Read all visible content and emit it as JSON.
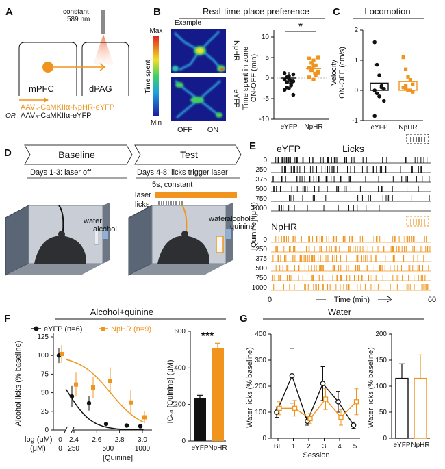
{
  "panels": {
    "A": {
      "label": "A",
      "laser_text_1": "constant",
      "laser_text_2": "589 nm",
      "box_left": "mPFC",
      "box_right": "dPAG",
      "virus_1": "AAV₅-CaMKIIα-NpHR-eYFP",
      "virus_or": "OR",
      "virus_2": "AAV₅-CaMKIIα-eYFP"
    },
    "B": {
      "label": "B",
      "title": "Real-time place preference",
      "example": "Example",
      "cb_max": "Max",
      "cb_min": "Min",
      "cb_label": "Time spent",
      "row1": "NpHR",
      "row2": "eYFP",
      "x_off": "OFF",
      "x_on": "ON",
      "ylabel_1": "Time spent in zone",
      "ylabel_2": "ON-OFF (min)",
      "sig": "*",
      "yticks": [
        "10",
        "5",
        "0",
        "-5",
        "-10"
      ],
      "xcats": [
        "eYFP",
        "NpHR"
      ]
    },
    "C": {
      "label": "C",
      "title": "Locomotion",
      "ylabel_1": "Velocity",
      "ylabel_2": "ON-OFF (cm/s)",
      "yticks": [
        "2",
        "1",
        "0",
        "-1"
      ],
      "xcats": [
        "eYFP",
        "NpHR"
      ]
    },
    "D": {
      "label": "D",
      "stage1": "Baseline",
      "stage2": "Test",
      "days1": "Days 1-3: laser off",
      "days2": "Days 4-8: licks trigger laser",
      "laser_label": "laser",
      "licks_label": "licks",
      "pulse": "5s, constant",
      "water1": "water",
      "alcohol1": "alcohol",
      "water2": "water",
      "alcohol2": "alcohol+",
      "quinine2": "quinine"
    },
    "E": {
      "label": "E",
      "group1": "eYFP",
      "licks_title": "Licks",
      "group2": "NpHR",
      "rows": [
        "0",
        "250",
        "375",
        "500",
        "750",
        "1000"
      ],
      "ylabel": "[Quinine] (μM)",
      "x0": "0",
      "x1": "60",
      "xlabel": "Time (min)"
    },
    "F": {
      "label": "F",
      "title_1": "Alcohol+",
      "title_2": "quinine",
      "legend_1": "eYFP (n=6)",
      "legend_2": "NpHR (n=9)",
      "ylabel": "Alcohol licks (% baseline)",
      "yticks": [
        "125",
        "100",
        "75",
        "50",
        "25",
        "0"
      ],
      "log_label": "log (μM)",
      "um_label": "(μM)",
      "log_ticks": [
        "0",
        "2.4",
        "2.6",
        "2.8",
        "3.0"
      ],
      "um_ticks": [
        "0",
        "250",
        "500",
        "1000"
      ],
      "xlabel": "[Quinine]",
      "ic_ylabel": "IC₅₀ [Quinine] (μM)",
      "ic_yticks": [
        "600",
        "400",
        "200",
        "0"
      ],
      "ic_sig": "***",
      "ic_xcats": [
        "eYFP",
        "NpHR"
      ]
    },
    "G": {
      "label": "G",
      "title": "Water",
      "ylabel": "Water licks (% baseline)",
      "yticks": [
        "400",
        "300",
        "200",
        "100",
        "0"
      ],
      "sessions": [
        "BL",
        "1",
        "2",
        "3",
        "4",
        "5"
      ],
      "xlabel": "Session",
      "bar_ylabel": "Water licks (% baseline)",
      "bar_yticks": [
        "200",
        "150",
        "100",
        "50",
        "0"
      ],
      "bar_xcats": [
        "eYFP",
        "NpHR"
      ]
    }
  },
  "colors": {
    "orange": "#f0941e",
    "black": "#111111",
    "grey": "#9aa0a6"
  },
  "chart_data": [
    {
      "panel": "B",
      "type": "scatter",
      "categories": [
        "eYFP",
        "NpHR"
      ],
      "ylim": [
        -10,
        10
      ],
      "means": [
        0,
        2.3
      ],
      "points": [
        [
          -0.4,
          -2.3,
          0.5,
          -0.7,
          -0.8,
          -2.9,
          0.2,
          -2.5,
          -1.4,
          -4.1,
          1.2,
          -1.0,
          -0.2,
          -1.8,
          0.9
        ],
        [
          4.8,
          1.9,
          3.0,
          0.6,
          1.6,
          2.5,
          3.7,
          -0.4,
          1.1,
          5.0,
          0.2,
          2.2,
          4.3,
          3.1,
          1.3
        ]
      ]
    },
    {
      "panel": "C",
      "type": "scatter",
      "categories": [
        "eYFP",
        "NpHR"
      ],
      "ylim": [
        -1,
        2
      ],
      "means": [
        0.15,
        0.2
      ],
      "points": [
        [
          1.6,
          0.85,
          0.5,
          0.15,
          0.05,
          0.0,
          -0.1,
          -0.2,
          0.1,
          -0.35,
          -0.85
        ],
        [
          1.1,
          0.7,
          0.45,
          0.35,
          0.2,
          0.1,
          0.05,
          0.0,
          0.0,
          -0.05,
          0.1,
          0.15
        ]
      ]
    },
    {
      "panel": "F",
      "type": "line",
      "xlabel": "[Quinine]",
      "ylabel": "Alcohol licks (% baseline)",
      "ylim": [
        0,
        125
      ],
      "x_log": [
        2.4,
        2.55,
        2.7,
        2.88,
        3.0
      ],
      "series": [
        {
          "name": "eYFP (n=6)",
          "baseline": [
            100,
            10
          ],
          "values": [
            45,
            36,
            8,
            6,
            5
          ],
          "errors": [
            14,
            10,
            3,
            2,
            2
          ]
        },
        {
          "name": "NpHR (n=9)",
          "baseline": [
            102,
            12
          ],
          "values": [
            61,
            57,
            66,
            37,
            17
          ],
          "errors": [
            16,
            14,
            18,
            16,
            8
          ]
        }
      ]
    },
    {
      "panel": "F",
      "type": "bar",
      "categories": [
        "eYFP",
        "NpHR"
      ],
      "values": [
        235,
        510
      ],
      "errors": [
        15,
        25
      ],
      "ylim": [
        0,
        600
      ],
      "ylabel": "IC₅₀ [Quinine] (μM)"
    },
    {
      "panel": "G",
      "type": "line",
      "categories": [
        "BL",
        "1",
        "2",
        "3",
        "4",
        "5"
      ],
      "ylim": [
        0,
        400
      ],
      "ylabel": "Water licks (% baseline)",
      "xlabel": "Session",
      "series": [
        {
          "values": [
            100,
            240,
            65,
            210,
            140,
            50
          ],
          "errors": [
            20,
            105,
            15,
            65,
            40,
            12
          ]
        },
        {
          "values": [
            115,
            115,
            75,
            150,
            80,
            140
          ],
          "errors": [
            25,
            30,
            20,
            40,
            30,
            50
          ]
        }
      ]
    },
    {
      "panel": "G",
      "type": "bar",
      "categories": [
        "eYFP",
        "NpHR"
      ],
      "values": [
        115,
        115
      ],
      "errors": [
        28,
        45
      ],
      "ylim": [
        0,
        200
      ],
      "ylabel": "Water licks (% baseline)"
    }
  ]
}
